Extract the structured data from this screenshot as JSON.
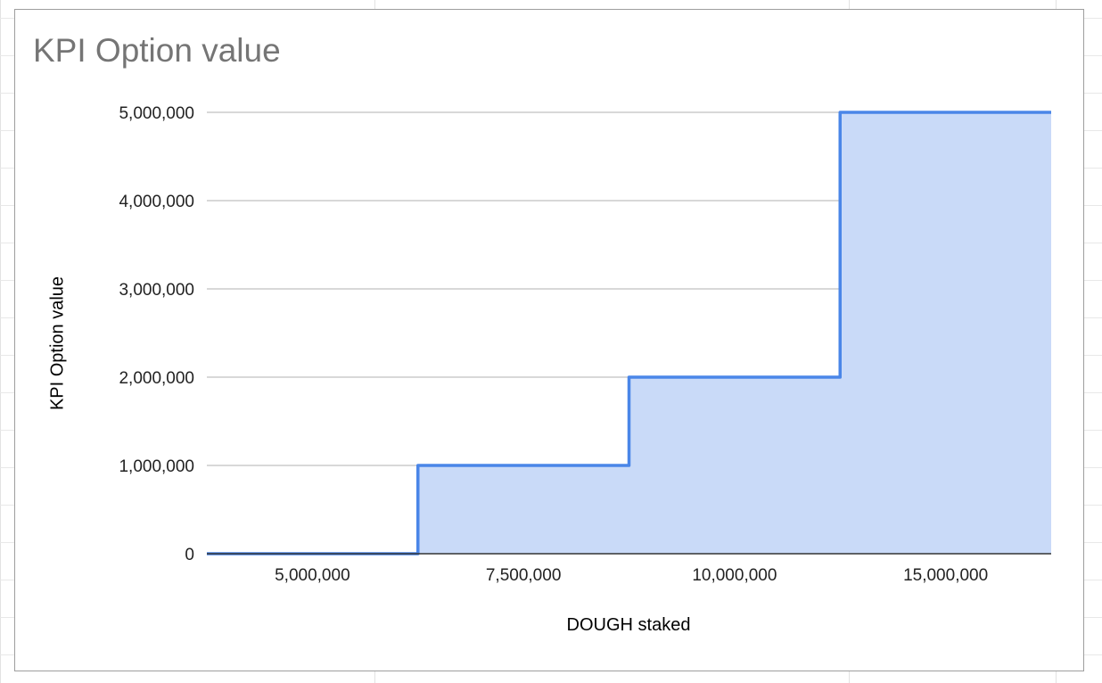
{
  "chart_data": {
    "type": "area",
    "title": "KPI Option value",
    "xlabel": "DOUGH staked",
    "ylabel": "KPI Option value",
    "x_ticks": [
      "5,000,000",
      "7,500,000",
      "10,000,000",
      "15,000,000"
    ],
    "y_ticks": [
      "0",
      "1,000,000",
      "2,000,000",
      "3,000,000",
      "4,000,000",
      "5,000,000"
    ],
    "ylim": [
      0,
      5000000
    ],
    "grid": true,
    "legend": "none",
    "step_interpolation": "step-after",
    "series": [
      {
        "categories": [
          "",
          "5,000,000",
          "",
          "7,500,000",
          "",
          "10,000,000",
          "",
          "15,000,000",
          ""
        ],
        "values": [
          0,
          0,
          1000000,
          1000000,
          2000000,
          2000000,
          5000000,
          5000000,
          5000000
        ]
      }
    ],
    "colors": {
      "line": "#4a86e8",
      "fill": "#c9daf8",
      "grid": "#cccccc",
      "axis": "#333333"
    }
  }
}
